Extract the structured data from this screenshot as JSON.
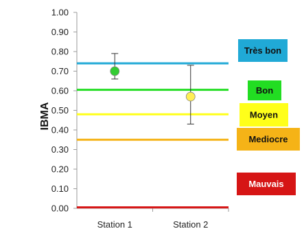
{
  "chart_data": {
    "type": "scatter",
    "title": "",
    "xlabel": "",
    "ylabel": "IBMA",
    "categories": [
      "Station 1",
      "Station 2"
    ],
    "ylim": [
      0,
      1
    ],
    "yticks": [
      "0.00",
      "0.10",
      "0.20",
      "0.30",
      "0.40",
      "0.50",
      "0.60",
      "0.70",
      "0.80",
      "0.90",
      "1.00"
    ],
    "grid": false,
    "series": [
      {
        "values": [
          0.7,
          0.57
        ],
        "error_high": [
          0.79,
          0.73
        ],
        "error_low": [
          0.66,
          0.43
        ],
        "point_colors": [
          "#33cc33",
          "#ffee55"
        ]
      }
    ],
    "thresholds": [
      {
        "label": "Très bon",
        "value": 0.74,
        "color": "#20a9d6",
        "text_color": "#111111"
      },
      {
        "label": "Bon",
        "value": 0.605,
        "color": "#22dd22",
        "text_color": "#111111"
      },
      {
        "label": "Moyen",
        "value": 0.48,
        "color": "#ffff1a",
        "text_color": "#111111"
      },
      {
        "label": "Mediocre",
        "value": 0.35,
        "color": "#f5b317",
        "text_color": "#111111"
      },
      {
        "label": "Mauvais",
        "value": 0.005,
        "color": "#d61515",
        "text_color": "#ffffff"
      }
    ]
  }
}
